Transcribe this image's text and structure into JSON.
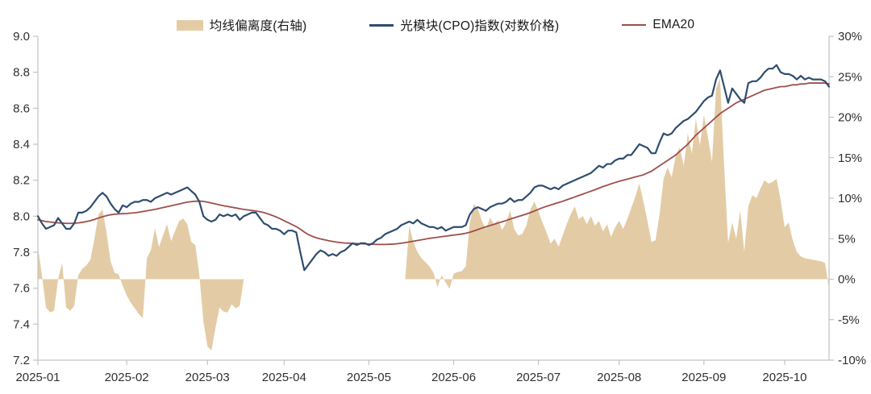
{
  "chart_data": {
    "type": "combo",
    "title": "",
    "x_tick_labels": [
      "2025-01",
      "2025-02",
      "2025-03",
      "2025-04",
      "2025-05",
      "2025-06",
      "2025-07",
      "2025-08",
      "2025-09",
      "2025-10"
    ],
    "x_tick_indices": [
      0,
      22,
      42,
      61,
      82,
      103,
      124,
      144,
      165,
      185
    ],
    "left_axis": {
      "min": 7.2,
      "max": 9.0,
      "step": 0.2,
      "labels": [
        "9.0",
        "8.8",
        "8.6",
        "8.4",
        "8.2",
        "8.0",
        "7.8",
        "7.6",
        "7.4",
        "7.2"
      ]
    },
    "right_axis": {
      "min": -10,
      "max": 30,
      "step": 5,
      "labels": [
        "30%",
        "25%",
        "20%",
        "15%",
        "10%",
        "5%",
        "0%",
        "-5%",
        "-10%"
      ]
    },
    "legend_position": "top-center",
    "grid": false,
    "plot": {
      "l": 47,
      "t": 45,
      "r": 1028,
      "b": 447
    },
    "colors": {
      "axis": "#c2c2c2",
      "tick_text": "#303030",
      "area": "#e3cca5",
      "price": "#2f4d6e",
      "ema": "#9e4f4b"
    },
    "series": [
      {
        "name": "均线偏离度(右轴)",
        "type": "area",
        "axis": "right",
        "color": "#e3cca5",
        "values": [
          4.0,
          0.5,
          -3.5,
          -4.1,
          -3.9,
          0.0,
          2.0,
          -3.5,
          -3.9,
          -3.3,
          0.5,
          1.3,
          1.7,
          2.4,
          5.0,
          8.0,
          8.6,
          5.8,
          2.2,
          0.8,
          0.6,
          -0.8,
          -2.0,
          -2.9,
          -3.6,
          -4.3,
          -4.8,
          2.6,
          3.6,
          6.3,
          4.0,
          5.4,
          6.8,
          4.7,
          6.0,
          7.2,
          7.5,
          6.8,
          4.6,
          4.2,
          0.5,
          -5.2,
          -8.3,
          -8.8,
          -6.0,
          -3.5,
          -4.0,
          -4.1,
          -3.1,
          -3.6,
          -3.3,
          0,
          0,
          0,
          0,
          0,
          0,
          0,
          0,
          0,
          0,
          0,
          0,
          0,
          0,
          0,
          0,
          0,
          0,
          0,
          0,
          0,
          0,
          0,
          0,
          0,
          0,
          0,
          0,
          0,
          0,
          0,
          0,
          0,
          0,
          0,
          0,
          0,
          0,
          0,
          0,
          0,
          6.6,
          4.6,
          3.4,
          2.6,
          2.1,
          1.6,
          0.8,
          -1.0,
          0.5,
          -0.4,
          -1.2,
          0.7,
          0.9,
          1.0,
          1.6,
          7.0,
          9.3,
          8.7,
          7.2,
          6.2,
          7.6,
          6.8,
          7.3,
          6.1,
          7.0,
          8.5,
          6.2,
          5.4,
          5.6,
          6.6,
          8.6,
          9.6,
          8.4,
          7.0,
          5.8,
          4.4,
          5.0,
          4.0,
          5.4,
          6.8,
          8.0,
          9.0,
          7.4,
          7.8,
          6.8,
          7.8,
          6.6,
          7.2,
          5.9,
          6.8,
          5.2,
          6.4,
          7.2,
          6.2,
          7.4,
          8.8,
          10.2,
          11.8,
          9.6,
          7.2,
          4.6,
          4.8,
          8.0,
          12.4,
          13.8,
          12.6,
          15.2,
          16.3,
          14.0,
          18.0,
          15.5,
          19.8,
          16.5,
          20.3,
          17.5,
          14.5,
          23.5,
          24.8,
          14.0,
          4.5,
          7.0,
          5.0,
          8.5,
          3.4,
          9.0,
          10.4,
          10.0,
          11.2,
          12.2,
          11.8,
          12.0,
          12.4,
          9.8,
          6.4,
          7.0,
          4.8,
          3.4,
          2.8,
          2.6,
          2.5,
          2.4,
          2.3,
          2.2,
          2.0,
          -1.2
        ]
      },
      {
        "name": "光模块(CPO)指数(对数价格)",
        "type": "line",
        "axis": "left",
        "color": "#2f4d6e",
        "values": [
          8.0,
          7.96,
          7.93,
          7.94,
          7.95,
          7.99,
          7.96,
          7.93,
          7.93,
          7.96,
          8.02,
          8.02,
          8.03,
          8.05,
          8.08,
          8.11,
          8.13,
          8.11,
          8.07,
          8.04,
          8.02,
          8.06,
          8.05,
          8.07,
          8.08,
          8.08,
          8.09,
          8.09,
          8.08,
          8.1,
          8.11,
          8.12,
          8.13,
          8.12,
          8.13,
          8.14,
          8.15,
          8.16,
          8.14,
          8.12,
          8.08,
          8.0,
          7.98,
          7.97,
          7.98,
          8.01,
          8.0,
          8.01,
          8.0,
          8.01,
          7.98,
          8.0,
          8.01,
          8.02,
          8.02,
          7.99,
          7.96,
          7.95,
          7.93,
          7.93,
          7.92,
          7.9,
          7.92,
          7.92,
          7.91,
          7.8,
          7.7,
          7.73,
          7.76,
          7.79,
          7.81,
          7.8,
          7.78,
          7.79,
          7.78,
          7.8,
          7.81,
          7.83,
          7.85,
          7.84,
          7.85,
          7.85,
          7.84,
          7.85,
          7.87,
          7.88,
          7.9,
          7.91,
          7.92,
          7.93,
          7.95,
          7.96,
          7.97,
          7.96,
          7.98,
          7.96,
          7.95,
          7.94,
          7.94,
          7.93,
          7.94,
          7.92,
          7.93,
          7.94,
          7.94,
          7.94,
          7.95,
          8.01,
          8.04,
          8.05,
          8.04,
          8.03,
          8.05,
          8.06,
          8.07,
          8.07,
          8.08,
          8.1,
          8.08,
          8.09,
          8.09,
          8.11,
          8.13,
          8.16,
          8.17,
          8.17,
          8.16,
          8.15,
          8.16,
          8.15,
          8.17,
          8.18,
          8.19,
          8.2,
          8.21,
          8.22,
          8.23,
          8.24,
          8.26,
          8.28,
          8.27,
          8.29,
          8.29,
          8.31,
          8.32,
          8.32,
          8.34,
          8.34,
          8.37,
          8.4,
          8.39,
          8.38,
          8.35,
          8.35,
          8.41,
          8.46,
          8.45,
          8.46,
          8.49,
          8.51,
          8.53,
          8.54,
          8.56,
          8.58,
          8.61,
          8.64,
          8.66,
          8.67,
          8.76,
          8.81,
          8.72,
          8.63,
          8.71,
          8.68,
          8.65,
          8.63,
          8.74,
          8.75,
          8.75,
          8.77,
          8.8,
          8.82,
          8.82,
          8.84,
          8.8,
          8.79,
          8.79,
          8.78,
          8.76,
          8.78,
          8.76,
          8.77,
          8.76,
          8.76,
          8.76,
          8.75,
          8.72
        ]
      },
      {
        "name": "EMA20",
        "type": "line",
        "axis": "left",
        "color": "#9e4f4b",
        "values": [
          7.98,
          7.975,
          7.97,
          7.968,
          7.965,
          7.963,
          7.962,
          7.96,
          7.96,
          7.961,
          7.963,
          7.966,
          7.97,
          7.975,
          7.982,
          7.99,
          7.997,
          8.003,
          8.008,
          8.011,
          8.013,
          8.014,
          8.015,
          8.017,
          8.019,
          8.022,
          8.026,
          8.03,
          8.034,
          8.038,
          8.043,
          8.048,
          8.053,
          8.058,
          8.063,
          8.068,
          8.073,
          8.078,
          8.081,
          8.083,
          8.084,
          8.082,
          8.078,
          8.073,
          8.068,
          8.063,
          8.058,
          8.054,
          8.05,
          8.046,
          8.042,
          8.038,
          8.035,
          8.032,
          8.029,
          8.025,
          8.02,
          8.013,
          8.005,
          7.996,
          7.986,
          7.975,
          7.964,
          7.953,
          7.942,
          7.928,
          7.912,
          7.898,
          7.888,
          7.88,
          7.874,
          7.869,
          7.864,
          7.86,
          7.856,
          7.853,
          7.851,
          7.85,
          7.849,
          7.848,
          7.847,
          7.846,
          7.845,
          7.844,
          7.843,
          7.843,
          7.843,
          7.844,
          7.845,
          7.847,
          7.85,
          7.853,
          7.857,
          7.861,
          7.865,
          7.869,
          7.873,
          7.877,
          7.88,
          7.883,
          7.886,
          7.889,
          7.892,
          7.895,
          7.898,
          7.901,
          7.905,
          7.911,
          7.918,
          7.926,
          7.934,
          7.941,
          7.948,
          7.955,
          7.962,
          7.969,
          7.976,
          7.984,
          7.991,
          7.998,
          8.005,
          8.012,
          8.02,
          8.029,
          8.038,
          8.047,
          8.055,
          8.062,
          8.069,
          8.076,
          8.083,
          8.091,
          8.099,
          8.107,
          8.115,
          8.123,
          8.131,
          8.139,
          8.147,
          8.156,
          8.165,
          8.172,
          8.18,
          8.187,
          8.194,
          8.2,
          8.206,
          8.212,
          8.218,
          8.224,
          8.23,
          8.24,
          8.25,
          8.265,
          8.28,
          8.295,
          8.31,
          8.325,
          8.34,
          8.36,
          8.38,
          8.4,
          8.425,
          8.45,
          8.47,
          8.49,
          8.51,
          8.53,
          8.55,
          8.57,
          8.585,
          8.6,
          8.615,
          8.63,
          8.64,
          8.65,
          8.66,
          8.67,
          8.68,
          8.69,
          8.7,
          8.705,
          8.71,
          8.715,
          8.72,
          8.72,
          8.725,
          8.73,
          8.73,
          8.735,
          8.735,
          8.74,
          8.74,
          8.74,
          8.74,
          8.74,
          8.735
        ]
      }
    ]
  }
}
